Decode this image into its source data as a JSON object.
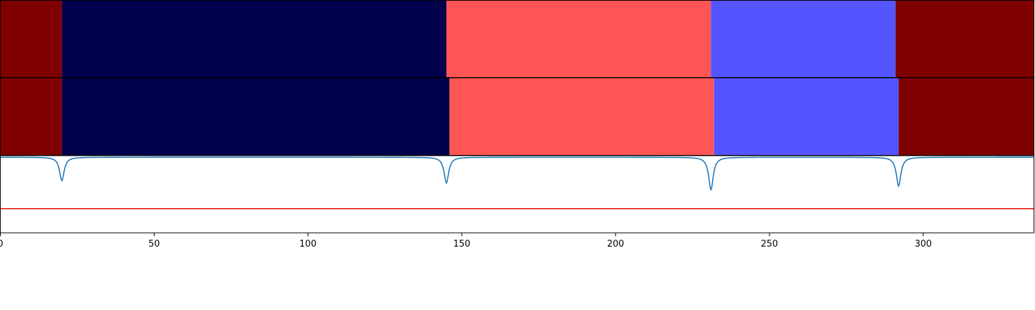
{
  "chart_data": {
    "type": "area",
    "xlim": [
      0,
      336
    ],
    "x_ticks": [
      0,
      50,
      100,
      150,
      200,
      250,
      300
    ],
    "x_tick_labels": [
      "0",
      "50",
      "100",
      "150",
      "200",
      "250",
      "300"
    ],
    "segment_rows": [
      {
        "segments": [
          {
            "start": 0,
            "end": 20,
            "color": "#7f0000"
          },
          {
            "start": 20,
            "end": 145,
            "color": "#00004c"
          },
          {
            "start": 145,
            "end": 231,
            "color": "#ff5555"
          },
          {
            "start": 231,
            "end": 291,
            "color": "#5555ff"
          },
          {
            "start": 291,
            "end": 336,
            "color": "#7f0000"
          }
        ]
      },
      {
        "segments": [
          {
            "start": 0,
            "end": 20,
            "color": "#7f0000"
          },
          {
            "start": 20,
            "end": 146,
            "color": "#00004c"
          },
          {
            "start": 146,
            "end": 232,
            "color": "#ff5555"
          },
          {
            "start": 232,
            "end": 292,
            "color": "#5555ff"
          },
          {
            "start": 292,
            "end": 336,
            "color": "#7f0000"
          }
        ]
      }
    ],
    "signal": {
      "ylim": [
        -0.5,
        0.01
      ],
      "baseline": 0,
      "threshold": -0.34,
      "threshold_color": "#e00000",
      "line_color": "#1f77b4",
      "dips": [
        {
          "x": 20,
          "depth": -0.155
        },
        {
          "x": 145,
          "depth": -0.17
        },
        {
          "x": 231,
          "depth": -0.215
        },
        {
          "x": 292,
          "depth": -0.19
        }
      ]
    }
  }
}
